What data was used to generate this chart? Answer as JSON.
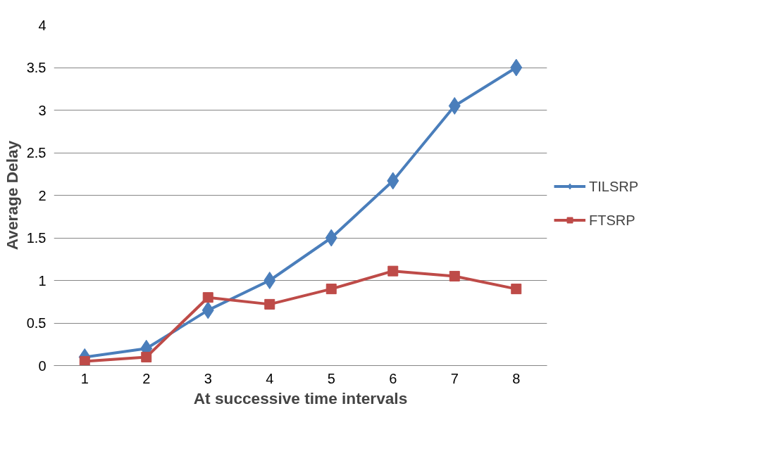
{
  "chart_data": {
    "type": "line",
    "xlabel": "At successive time intervals",
    "ylabel": "Average Delay",
    "categories": [
      "1",
      "2",
      "3",
      "4",
      "5",
      "6",
      "7",
      "8"
    ],
    "series": [
      {
        "name": "TILSRP",
        "color": "#4a7ebb",
        "marker": "diamond",
        "values": [
          0.1,
          0.2,
          0.65,
          1.0,
          1.5,
          2.17,
          3.05,
          3.5
        ]
      },
      {
        "name": "FTSRP",
        "color": "#be4b48",
        "marker": "square",
        "values": [
          0.05,
          0.1,
          0.8,
          0.72,
          0.9,
          1.11,
          1.05,
          0.9
        ]
      }
    ],
    "ylim": [
      0,
      4
    ],
    "yticks": [
      0,
      0.5,
      1,
      1.5,
      2,
      2.5,
      3,
      3.5,
      4
    ],
    "grid": "y",
    "legend": "right",
    "line_style": "solid"
  }
}
